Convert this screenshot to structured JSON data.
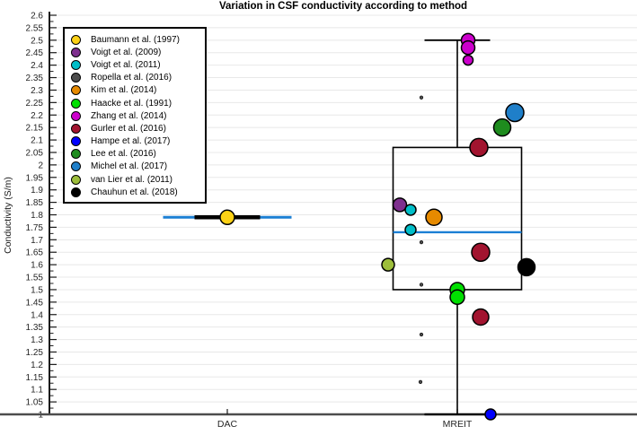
{
  "title": "Variation in CSF conductivity according to method",
  "chart_data": {
    "type": "boxplot",
    "title": "Variation in CSF conductivity according to method",
    "ylabel": "Conductivity (S/m)",
    "xlabel": "",
    "ylim": [
      1,
      2.6
    ],
    "yticks": [
      1,
      1.05,
      1.1,
      1.15,
      1.2,
      1.25,
      1.3,
      1.35,
      1.4,
      1.45,
      1.5,
      1.55,
      1.6,
      1.65,
      1.7,
      1.75,
      1.8,
      1.85,
      1.9,
      1.95,
      2,
      2.05,
      2.1,
      2.15,
      2.2,
      2.25,
      2.3,
      2.35,
      2.4,
      2.45,
      2.5,
      2.55,
      2.6
    ],
    "grid": "horizontal-major",
    "legend_position": "top-left",
    "categories": [
      "DAC",
      "MREIT"
    ],
    "boxes": [
      {
        "category": "DAC",
        "q1": 1.79,
        "median": 1.79,
        "q3": 1.79,
        "whisker_low": 1.79,
        "whisker_high": 1.79
      },
      {
        "category": "MREIT",
        "q1": 1.5,
        "median": 1.73,
        "q3": 2.07,
        "whisker_low": 1.0,
        "whisker_high": 2.5
      }
    ],
    "series": [
      {
        "name": "Baumann et al. (1997)",
        "color": "#FCD116",
        "points": [
          {
            "cat": "DAC",
            "value": 1.79,
            "dx": 0,
            "size": 8
          }
        ]
      },
      {
        "name": "Voigt et al. (2009)",
        "color": "#7E2F8E",
        "points": [
          {
            "cat": "MREIT",
            "value": 1.84,
            "dx": -64,
            "size": 7.5
          }
        ]
      },
      {
        "name": "Voigt et al. (2011)",
        "color": "#00BEC8",
        "points": [
          {
            "cat": "MREIT",
            "value": 1.82,
            "dx": -52,
            "size": 6
          },
          {
            "cat": "MREIT",
            "value": 1.74,
            "dx": -52,
            "size": 6
          }
        ]
      },
      {
        "name": "Ropella et al. (2016)",
        "color": "#4D4D4D",
        "points": [
          {
            "cat": "MREIT",
            "value": 2.27,
            "dx": -40,
            "size": 1.8
          },
          {
            "cat": "MREIT",
            "value": 1.69,
            "dx": -40,
            "size": 1.8
          },
          {
            "cat": "MREIT",
            "value": 1.52,
            "dx": -40,
            "size": 1.8
          },
          {
            "cat": "MREIT",
            "value": 1.32,
            "dx": -40,
            "size": 1.8
          },
          {
            "cat": "MREIT",
            "value": 1.13,
            "dx": -41,
            "size": 1.8
          }
        ]
      },
      {
        "name": "Kim et al. (2014)",
        "color": "#E68A00",
        "points": [
          {
            "cat": "MREIT",
            "value": 1.79,
            "dx": -26,
            "size": 9
          }
        ]
      },
      {
        "name": "Haacke et al. (1991)",
        "color": "#00DF00",
        "points": [
          {
            "cat": "MREIT",
            "value": 1.5,
            "dx": 0,
            "size": 8
          },
          {
            "cat": "MREIT",
            "value": 1.47,
            "dx": 0,
            "size": 8
          }
        ]
      },
      {
        "name": "Zhang et al. (2014)",
        "color": "#CC00CC",
        "points": [
          {
            "cat": "MREIT",
            "value": 2.5,
            "dx": 12,
            "size": 7.5
          },
          {
            "cat": "MREIT",
            "value": 2.47,
            "dx": 12,
            "size": 7.5
          },
          {
            "cat": "MREIT",
            "value": 2.42,
            "dx": 12,
            "size": 5.5
          }
        ]
      },
      {
        "name": "Gurler et al. (2016)",
        "color": "#A2142F",
        "points": [
          {
            "cat": "MREIT",
            "value": 2.07,
            "dx": 24,
            "size": 10
          },
          {
            "cat": "MREIT",
            "value": 1.65,
            "dx": 26,
            "size": 10
          },
          {
            "cat": "MREIT",
            "value": 1.39,
            "dx": 26,
            "size": 9
          }
        ]
      },
      {
        "name": "Hampe et al. (2017)",
        "color": "#0000FF",
        "points": [
          {
            "cat": "MREIT",
            "value": 1.0,
            "dx": 37,
            "size": 6
          }
        ]
      },
      {
        "name": "Lee et al. (2016)",
        "color": "#1E8C1E",
        "points": [
          {
            "cat": "MREIT",
            "value": 2.15,
            "dx": 50,
            "size": 9.5
          }
        ]
      },
      {
        "name": "Michel et al. (2017)",
        "color": "#1F7FC9",
        "points": [
          {
            "cat": "MREIT",
            "value": 2.21,
            "dx": 64,
            "size": 10
          }
        ]
      },
      {
        "name": "van Lier et al. (2011)",
        "color": "#9DBE3B",
        "points": [
          {
            "cat": "MREIT",
            "value": 1.6,
            "dx": -77,
            "size": 7
          }
        ]
      },
      {
        "name": "Chauhun et al. (2018)",
        "color": "#000000",
        "points": [
          {
            "cat": "MREIT",
            "value": 1.59,
            "dx": 77,
            "size": 9.5
          }
        ]
      }
    ],
    "style": {
      "median_color": "#1B7FD4",
      "box_color": "#000000",
      "axis_color": "#1A1A1A",
      "x_axis_color": "#4D4D4D",
      "grid_color": "#E8E8E8",
      "tick_label_color": "#262626"
    }
  }
}
